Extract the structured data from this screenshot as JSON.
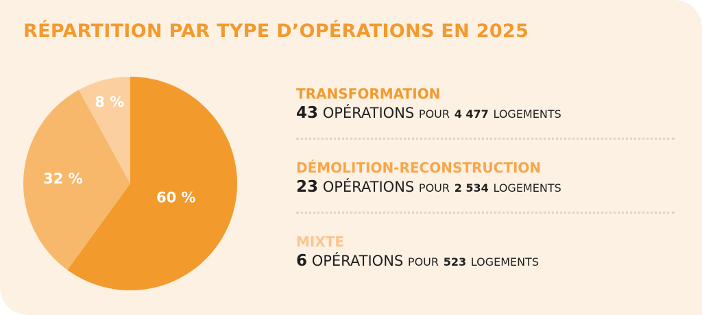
{
  "title": "RÉPARTITION PAR TYPE D’OPÉRATIONS EN 2025",
  "colors": {
    "background": "#fdf1e4",
    "accent": "#f39a2d",
    "text": "#1f1f1f"
  },
  "chart_data": {
    "type": "pie",
    "title": "RÉPARTITION PAR TYPE D’OPÉRATIONS EN 2025",
    "slices": [
      {
        "label": "TRANSFORMATION",
        "value": 60,
        "display": "60 %",
        "color": "#f39a2d"
      },
      {
        "label": "DÉMOLITION-RECONSTRUCTION",
        "value": 32,
        "display": "32 %",
        "color": "#f8b86b"
      },
      {
        "label": "MIXTE",
        "value": 8,
        "display": "8 %",
        "color": "#fbcf9e"
      }
    ]
  },
  "legend": [
    {
      "name": "TRANSFORMATION",
      "name_color": "#f39a2d",
      "operations": "43",
      "operations_label": "OPÉRATIONS",
      "pour": "POUR",
      "logements": "4 477",
      "logements_label": "LOGEMENTS"
    },
    {
      "name": "DÉMOLITION-RECONSTRUCTION",
      "name_color": "#f8a64a",
      "operations": "23",
      "operations_label": "OPÉRATIONS",
      "pour": "POUR",
      "logements": "2 534",
      "logements_label": "LOGEMENTS"
    },
    {
      "name": "MIXTE",
      "name_color": "#fbc58c",
      "operations": "6",
      "operations_label": "OPÉRATIONS",
      "pour": "POUR",
      "logements": "523",
      "logements_label": "LOGEMENTS"
    }
  ]
}
